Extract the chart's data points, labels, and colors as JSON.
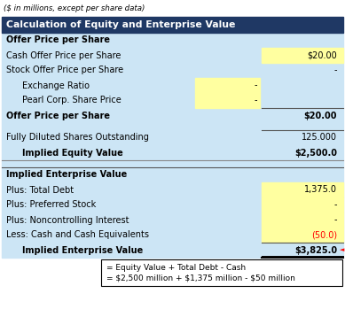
{
  "subtitle": "($ in millions, except per share data)",
  "header": "Calculation of Equity and Enterprise Value",
  "header_bg": "#1F3864",
  "header_fg": "#FFFFFF",
  "light_bg": "#CCE5F5",
  "yellow_bg": "#FFFFA0",
  "footnote_bg": "#FFFFFF",
  "rows": [
    {
      "label": "Offer Price per Share",
      "col1": "",
      "col2": "",
      "bold": true,
      "indent": false,
      "col1_yellow": false,
      "col2_yellow": false,
      "line_above_full": false,
      "line_above_col2": false,
      "line_below_col2": false,
      "red_val": false,
      "spacer": false,
      "section_sep": false
    },
    {
      "label": "Cash Offer Price per Share",
      "col1": "",
      "col2": "$20.00",
      "bold": false,
      "indent": false,
      "col1_yellow": false,
      "col2_yellow": true,
      "line_above_full": false,
      "line_above_col2": false,
      "line_below_col2": false,
      "red_val": false,
      "spacer": false,
      "section_sep": false
    },
    {
      "label": "Stock Offer Price per Share",
      "col1": "",
      "col2": "-",
      "bold": false,
      "indent": false,
      "col1_yellow": false,
      "col2_yellow": false,
      "line_above_full": false,
      "line_above_col2": false,
      "line_below_col2": false,
      "red_val": false,
      "spacer": false,
      "section_sep": false
    },
    {
      "label": "Exchange Ratio",
      "col1": "-",
      "col2": "",
      "bold": false,
      "indent": true,
      "col1_yellow": true,
      "col2_yellow": false,
      "line_above_full": false,
      "line_above_col2": false,
      "line_below_col2": false,
      "red_val": false,
      "spacer": false,
      "section_sep": false
    },
    {
      "label": "Pearl Corp. Share Price",
      "col1": "-",
      "col2": "",
      "bold": false,
      "indent": true,
      "col1_yellow": true,
      "col2_yellow": false,
      "line_above_full": false,
      "line_above_col2": false,
      "line_below_col2": false,
      "red_val": false,
      "spacer": false,
      "section_sep": false
    },
    {
      "label": "Offer Price per Share",
      "col1": "",
      "col2": "$20.00",
      "bold": true,
      "indent": false,
      "col1_yellow": false,
      "col2_yellow": false,
      "line_above_full": false,
      "line_above_col2": true,
      "line_below_col2": false,
      "red_val": false,
      "spacer": false,
      "section_sep": false
    },
    {
      "label": "",
      "col1": "",
      "col2": "",
      "bold": false,
      "indent": false,
      "col1_yellow": false,
      "col2_yellow": false,
      "line_above_full": false,
      "line_above_col2": false,
      "line_below_col2": false,
      "red_val": false,
      "spacer": true,
      "section_sep": false
    },
    {
      "label": "Fully Diluted Shares Outstanding",
      "col1": "",
      "col2": "125.000",
      "bold": false,
      "indent": false,
      "col1_yellow": false,
      "col2_yellow": false,
      "line_above_full": false,
      "line_above_col2": true,
      "line_below_col2": false,
      "red_val": false,
      "spacer": false,
      "section_sep": false
    },
    {
      "label": "Implied Equity Value",
      "col1": "",
      "col2": "$2,500.0",
      "bold": true,
      "indent": true,
      "col1_yellow": false,
      "col2_yellow": false,
      "line_above_full": false,
      "line_above_col2": false,
      "line_below_col2": false,
      "red_val": false,
      "spacer": false,
      "section_sep": false
    },
    {
      "label": "",
      "col1": "",
      "col2": "",
      "bold": false,
      "indent": false,
      "col1_yellow": false,
      "col2_yellow": false,
      "line_above_full": false,
      "line_above_col2": false,
      "line_below_col2": false,
      "red_val": false,
      "spacer": true,
      "section_sep": true
    },
    {
      "label": "Implied Enterprise Value",
      "col1": "",
      "col2": "",
      "bold": true,
      "indent": false,
      "col1_yellow": false,
      "col2_yellow": false,
      "line_above_full": true,
      "line_above_col2": false,
      "line_below_col2": false,
      "red_val": false,
      "spacer": false,
      "section_sep": false
    },
    {
      "label": "Plus: Total Debt",
      "col1": "",
      "col2": "1,375.0",
      "bold": false,
      "indent": false,
      "col1_yellow": false,
      "col2_yellow": true,
      "line_above_full": false,
      "line_above_col2": false,
      "line_below_col2": false,
      "red_val": false,
      "spacer": false,
      "section_sep": false
    },
    {
      "label": "Plus: Preferred Stock",
      "col1": "",
      "col2": "-",
      "bold": false,
      "indent": false,
      "col1_yellow": false,
      "col2_yellow": true,
      "line_above_full": false,
      "line_above_col2": false,
      "line_below_col2": false,
      "red_val": false,
      "spacer": false,
      "section_sep": false
    },
    {
      "label": "Plus: Noncontrolling Interest",
      "col1": "",
      "col2": "-",
      "bold": false,
      "indent": false,
      "col1_yellow": false,
      "col2_yellow": true,
      "line_above_full": false,
      "line_above_col2": false,
      "line_below_col2": false,
      "red_val": false,
      "spacer": false,
      "section_sep": false
    },
    {
      "label": "Less: Cash and Cash Equivalents",
      "col1": "",
      "col2": "(50.0)",
      "bold": false,
      "indent": false,
      "col1_yellow": false,
      "col2_yellow": true,
      "line_above_full": false,
      "line_above_col2": false,
      "line_below_col2": false,
      "red_val": true,
      "spacer": false,
      "section_sep": false
    },
    {
      "label": "Implied Enterprise Value",
      "col1": "",
      "col2": "$3,825.0",
      "bold": true,
      "indent": true,
      "col1_yellow": false,
      "col2_yellow": false,
      "line_above_full": false,
      "line_above_col2": true,
      "line_below_col2": true,
      "red_val": false,
      "spacer": false,
      "section_sep": false
    }
  ],
  "footnote_line1": "= Equity Value + Total Debt - Cash",
  "footnote_line2": "= $2,500 million + $1,375 million - $50 million",
  "triangle": "►"
}
